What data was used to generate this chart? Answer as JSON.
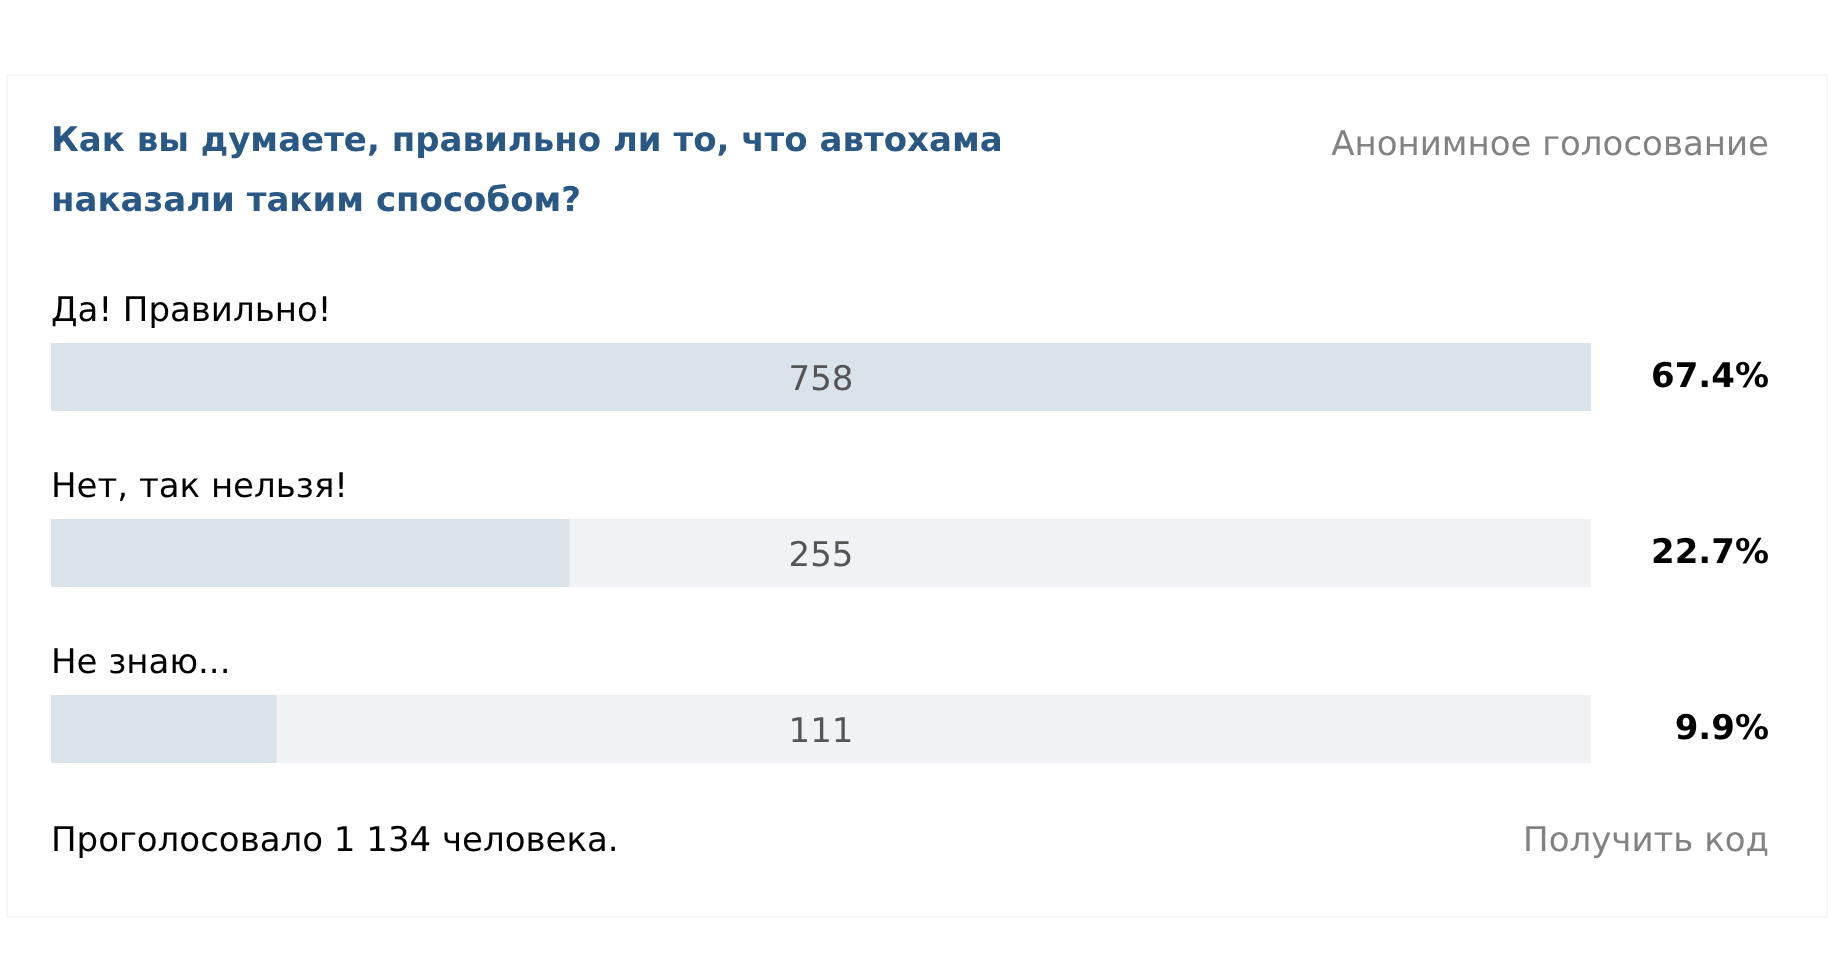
{
  "chart_data": {
    "type": "bar",
    "orientation": "horizontal",
    "title": "Как вы думаете, правильно ли то, что автохама наказали таким способом?",
    "subtitle": "Анонимное голосование",
    "categories": [
      "Да! Правильно!",
      "Нет, так нельзя!",
      "Не знаю..."
    ],
    "values": [
      758,
      255,
      111
    ],
    "color": "#dae2ea",
    "data_labels": true,
    "grid": false,
    "annotations": [
      "67.4%",
      "22.7%",
      "9.9%",
      "Проголосовало 1 134 человека.",
      "Получить код"
    ]
  }
}
